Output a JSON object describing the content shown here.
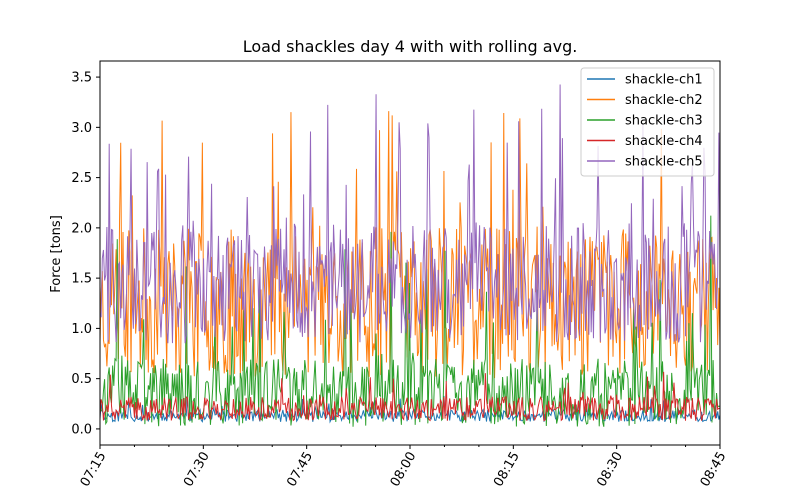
{
  "chart_data": {
    "type": "line",
    "title": "Load shackles day 4 with with rolling avg.",
    "xlabel": "",
    "ylabel": "Force [tons]",
    "x_ticks": [
      "07:15",
      "07:30",
      "07:45",
      "08:00",
      "08:15",
      "08:30",
      "08:45"
    ],
    "x_range": [
      "07:15",
      "08:45"
    ],
    "ylim": [
      -0.16,
      3.66
    ],
    "y_ticks": [
      "0.0",
      "0.5",
      "1.0",
      "1.5",
      "2.0",
      "2.5",
      "3.0",
      "3.5"
    ],
    "y_tick_values": [
      0.0,
      0.5,
      1.0,
      1.5,
      2.0,
      2.5,
      3.0,
      3.5
    ],
    "grid": false,
    "legend_position": "top-right",
    "series": [
      {
        "name": "shackle-ch1",
        "color": "#1f77b4",
        "stats": {
          "baseline": 0.13,
          "spread": 0.06,
          "peak_max": 0.35
        }
      },
      {
        "name": "shackle-ch2",
        "color": "#ff7f0e",
        "stats": {
          "baseline": 1.25,
          "spread": 0.75,
          "peak_max": 3.17
        }
      },
      {
        "name": "shackle-ch3",
        "color": "#2ca02c",
        "stats": {
          "baseline": 0.35,
          "spread": 0.35,
          "peak_max": 2.2
        }
      },
      {
        "name": "shackle-ch4",
        "color": "#d62728",
        "stats": {
          "baseline": 0.2,
          "spread": 0.12,
          "peak_max": 0.6
        }
      },
      {
        "name": "shackle-ch5",
        "color": "#9467bd",
        "stats": {
          "baseline": 1.45,
          "spread": 0.6,
          "peak_max": 3.45
        }
      }
    ]
  }
}
